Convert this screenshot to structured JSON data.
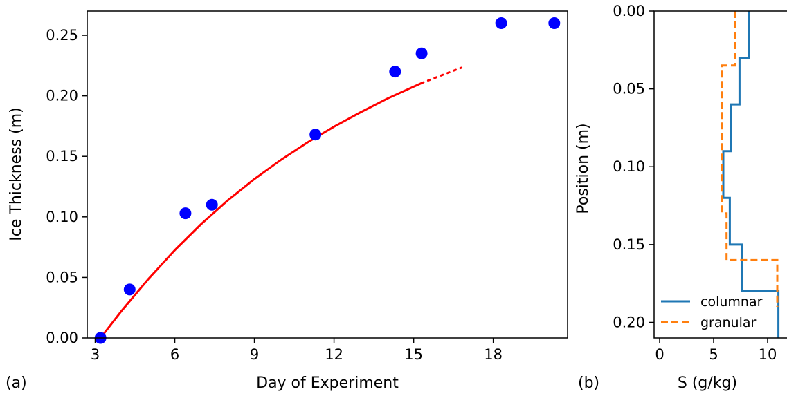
{
  "chart_data": [
    {
      "panel_label": "(a)",
      "type": "scatter",
      "xlabel": "Day of Experiment",
      "ylabel": "Ice Thickness (m)",
      "xlim": [
        2.7,
        20.8
      ],
      "ylim": [
        0.0,
        0.27
      ],
      "xticks": [
        3,
        6,
        9,
        12,
        15,
        18
      ],
      "yticks": [
        0.0,
        0.05,
        0.1,
        0.15,
        0.2,
        0.25
      ],
      "xtick_labels": [
        "3",
        "6",
        "9",
        "12",
        "15",
        "18"
      ],
      "ytick_labels": [
        "0.00",
        "0.05",
        "0.10",
        "0.15",
        "0.20",
        "0.25"
      ],
      "grid": false,
      "series": [
        {
          "kind": "scatter",
          "color": "#0000ff",
          "x": [
            3.2,
            4.3,
            6.4,
            7.4,
            11.3,
            14.3,
            15.3,
            18.3,
            20.3
          ],
          "y": [
            0.0,
            0.04,
            0.103,
            0.11,
            0.168,
            0.22,
            0.235,
            0.26,
            0.26
          ]
        },
        {
          "kind": "line",
          "style": "solid",
          "color": "#ff0000",
          "x": [
            3.2,
            4.0,
            5.0,
            6.0,
            7.0,
            8.0,
            9.0,
            10.0,
            11.0,
            12.0,
            13.0,
            14.0,
            15.3
          ],
          "y": [
            0.0,
            0.0225,
            0.0486,
            0.0725,
            0.0942,
            0.1137,
            0.1313,
            0.1471,
            0.1615,
            0.1745,
            0.1864,
            0.1976,
            0.2105
          ]
        },
        {
          "kind": "line",
          "style": "dotted",
          "color": "#ff0000",
          "x": [
            15.3,
            16.0,
            16.8
          ],
          "y": [
            0.2105,
            0.2165,
            0.2232
          ]
        }
      ]
    },
    {
      "panel_label": "(b)",
      "type": "line",
      "xlabel": "S (g/kg)",
      "ylabel": "Position (m)",
      "xlim": [
        -0.5,
        11
      ],
      "ylim": [
        0.21,
        0.0
      ],
      "xticks": [
        0,
        5,
        10
      ],
      "yticks": [
        0.0,
        0.05,
        0.1,
        0.15,
        0.2
      ],
      "xtick_labels": [
        "0",
        "5",
        "10"
      ],
      "ytick_labels": [
        "0.00",
        "0.05",
        "0.10",
        "0.15",
        "0.20"
      ],
      "grid": false,
      "legend_position": "bottom-left",
      "series": [
        {
          "name": "columnar",
          "style": "solid",
          "color": "#1f77b4",
          "S": [
            8.3,
            8.3,
            7.4,
            7.4,
            6.6,
            6.6,
            5.9,
            5.9,
            6.5,
            6.5,
            7.6,
            7.6,
            11.0,
            11.0
          ],
          "position": [
            0.0,
            0.03,
            0.03,
            0.06,
            0.06,
            0.09,
            0.09,
            0.12,
            0.12,
            0.15,
            0.15,
            0.18,
            0.18,
            0.21
          ]
        },
        {
          "name": "granular",
          "style": "dashed",
          "color": "#ff7f0e",
          "S": [
            7.0,
            7.0,
            5.8,
            5.8,
            6.2,
            6.2,
            10.9,
            10.9
          ],
          "position": [
            0.0,
            0.035,
            0.035,
            0.13,
            0.13,
            0.16,
            0.16,
            0.19
          ]
        }
      ]
    }
  ]
}
